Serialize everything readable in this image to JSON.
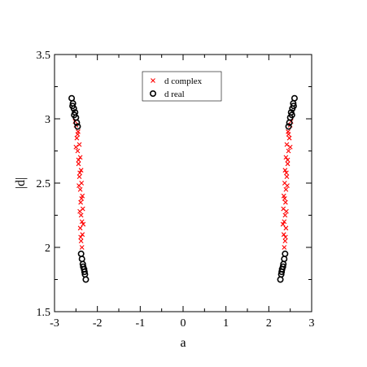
{
  "chart_data": {
    "type": "scatter",
    "xlabel": "a",
    "ylabel": "|d|",
    "xlim": [
      -3,
      3
    ],
    "ylim": [
      1.5,
      3.5
    ],
    "x_ticks": [
      "-3",
      "-2",
      "-1",
      "0",
      "1",
      "2",
      "3"
    ],
    "y_ticks": [
      "1.5",
      "2",
      "2.5",
      "3",
      "3.5"
    ],
    "legend_position": "top-center",
    "series": [
      {
        "name": "d complex",
        "marker": "x",
        "color": "#ff0000",
        "points": [
          [
            -2.5,
            2.95
          ],
          [
            -2.45,
            2.9
          ],
          [
            -2.48,
            2.85
          ],
          [
            -2.42,
            2.8
          ],
          [
            -2.46,
            2.75
          ],
          [
            -2.4,
            2.7
          ],
          [
            -2.44,
            2.65
          ],
          [
            -2.38,
            2.6
          ],
          [
            -2.42,
            2.55
          ],
          [
            -2.37,
            2.5
          ],
          [
            -2.4,
            2.45
          ],
          [
            -2.35,
            2.4
          ],
          [
            -2.39,
            2.35
          ],
          [
            -2.34,
            2.3
          ],
          [
            -2.38,
            2.25
          ],
          [
            -2.36,
            2.2
          ],
          [
            -2.4,
            2.15
          ],
          [
            -2.35,
            2.1
          ],
          [
            -2.38,
            2.05
          ],
          [
            -2.36,
            2.0
          ],
          [
            -2.52,
            2.98
          ],
          [
            -2.46,
            2.88
          ],
          [
            -2.5,
            2.78
          ],
          [
            -2.44,
            2.68
          ],
          [
            -2.41,
            2.58
          ],
          [
            -2.43,
            2.48
          ],
          [
            -2.37,
            2.38
          ],
          [
            -2.41,
            2.28
          ],
          [
            -2.33,
            2.18
          ],
          [
            -2.39,
            2.08
          ],
          [
            2.5,
            2.95
          ],
          [
            2.45,
            2.9
          ],
          [
            2.48,
            2.85
          ],
          [
            2.42,
            2.8
          ],
          [
            2.46,
            2.75
          ],
          [
            2.4,
            2.7
          ],
          [
            2.44,
            2.65
          ],
          [
            2.38,
            2.6
          ],
          [
            2.42,
            2.55
          ],
          [
            2.37,
            2.5
          ],
          [
            2.4,
            2.45
          ],
          [
            2.35,
            2.4
          ],
          [
            2.39,
            2.35
          ],
          [
            2.34,
            2.3
          ],
          [
            2.38,
            2.25
          ],
          [
            2.36,
            2.2
          ],
          [
            2.4,
            2.15
          ],
          [
            2.35,
            2.1
          ],
          [
            2.38,
            2.05
          ],
          [
            2.36,
            2.0
          ],
          [
            2.52,
            2.98
          ],
          [
            2.46,
            2.88
          ],
          [
            2.5,
            2.78
          ],
          [
            2.44,
            2.68
          ],
          [
            2.41,
            2.58
          ],
          [
            2.43,
            2.48
          ],
          [
            2.37,
            2.38
          ],
          [
            2.41,
            2.28
          ],
          [
            2.33,
            2.18
          ],
          [
            2.39,
            2.08
          ]
        ]
      },
      {
        "name": "d real",
        "marker": "o",
        "color": "#000000",
        "points": [
          [
            -2.6,
            3.16
          ],
          [
            -2.57,
            3.12
          ],
          [
            -2.55,
            3.08
          ],
          [
            -2.52,
            3.05
          ],
          [
            -2.5,
            3.01
          ],
          [
            -2.48,
            2.97
          ],
          [
            -2.46,
            2.94
          ],
          [
            -2.58,
            3.1
          ],
          [
            -2.54,
            3.03
          ],
          [
            -2.38,
            1.95
          ],
          [
            -2.36,
            1.91
          ],
          [
            -2.34,
            1.87
          ],
          [
            -2.31,
            1.83
          ],
          [
            -2.29,
            1.79
          ],
          [
            -2.27,
            1.75
          ],
          [
            -2.33,
            1.85
          ],
          [
            -2.3,
            1.81
          ],
          [
            2.6,
            3.16
          ],
          [
            2.57,
            3.12
          ],
          [
            2.55,
            3.08
          ],
          [
            2.52,
            3.05
          ],
          [
            2.5,
            3.01
          ],
          [
            2.48,
            2.97
          ],
          [
            2.46,
            2.94
          ],
          [
            2.58,
            3.1
          ],
          [
            2.54,
            3.03
          ],
          [
            2.38,
            1.95
          ],
          [
            2.36,
            1.91
          ],
          [
            2.34,
            1.87
          ],
          [
            2.31,
            1.83
          ],
          [
            2.29,
            1.79
          ],
          [
            2.27,
            1.75
          ],
          [
            2.33,
            1.85
          ],
          [
            2.3,
            1.81
          ]
        ]
      }
    ]
  }
}
